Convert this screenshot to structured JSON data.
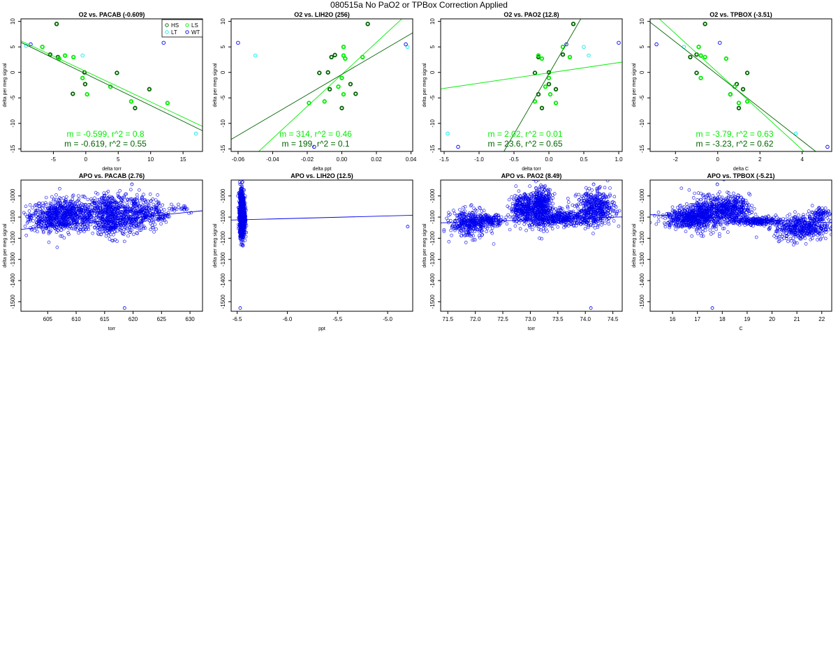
{
  "page_title": "080515a   No PaO2 or TPBox Correction Applied",
  "colors": {
    "HS": "#006400",
    "LS": "#00ee00",
    "LT": "#00eeee",
    "WT": "#0000ee",
    "axes": "#000000"
  },
  "legend": {
    "entries": [
      {
        "label": "HS",
        "key": "HS"
      },
      {
        "label": "LS",
        "key": "LS"
      },
      {
        "label": "LT",
        "key": "LT"
      },
      {
        "label": "WT",
        "key": "WT"
      }
    ]
  },
  "chart_data": [
    {
      "type": "scatter",
      "title": "O2 vs. PACAB (-0.609)",
      "xlabel": "delta torr",
      "ylabel": "delta per meg signal",
      "xlim": [
        -10,
        18
      ],
      "ylim": [
        -15.5,
        10.5
      ],
      "xticks": [
        -5,
        0,
        5,
        10,
        15
      ],
      "yticks": [
        -15,
        -10,
        -5,
        0,
        5,
        10
      ],
      "show_legend": true,
      "points": [
        {
          "x": -4.5,
          "y": 9.5,
          "g": "HS"
        },
        {
          "x": -5.5,
          "y": 3.5,
          "g": "HS"
        },
        {
          "x": -4.3,
          "y": 3.0,
          "g": "HS"
        },
        {
          "x": -2.0,
          "y": -4.2,
          "g": "HS"
        },
        {
          "x": -0.2,
          "y": 0.0,
          "g": "HS"
        },
        {
          "x": -0.1,
          "y": -2.3,
          "g": "HS"
        },
        {
          "x": 9.8,
          "y": -3.3,
          "g": "HS"
        },
        {
          "x": 7.6,
          "y": -7.0,
          "g": "HS"
        },
        {
          "x": 4.8,
          "y": -0.1,
          "g": "HS"
        },
        {
          "x": -6.7,
          "y": 5.0,
          "g": "LS"
        },
        {
          "x": -4.1,
          "y": 2.7,
          "g": "LS"
        },
        {
          "x": -3.2,
          "y": 3.3,
          "g": "LS"
        },
        {
          "x": -1.9,
          "y": 3.0,
          "g": "LS"
        },
        {
          "x": -0.5,
          "y": -1.1,
          "g": "LS"
        },
        {
          "x": 0.2,
          "y": -4.3,
          "g": "LS"
        },
        {
          "x": 3.8,
          "y": -2.8,
          "g": "LS"
        },
        {
          "x": 7.0,
          "y": -5.7,
          "g": "LS"
        },
        {
          "x": 12.6,
          "y": -6.0,
          "g": "LS"
        },
        {
          "x": -9.2,
          "y": 5.2,
          "g": "LT"
        },
        {
          "x": -0.5,
          "y": 3.3,
          "g": "LT"
        },
        {
          "x": 17.0,
          "y": -12.0,
          "g": "LT"
        },
        {
          "x": -8.5,
          "y": 5.5,
          "g": "WT"
        },
        {
          "x": 12.0,
          "y": 5.8,
          "g": "WT"
        }
      ],
      "fits": [
        {
          "g": "LS",
          "slope": -0.599,
          "intercept": 0.2,
          "text": "m = -0.599, r^2 = 0.8"
        },
        {
          "g": "HS",
          "slope": -0.619,
          "intercept": -0.3,
          "text": "m = -0.619, r^2 = 0.55"
        }
      ]
    },
    {
      "type": "scatter",
      "title": "O2 vs. LIH2O (256)",
      "xlabel": "delta ppt",
      "ylabel": "delta per meg signal",
      "xlim": [
        -0.064,
        0.041
      ],
      "ylim": [
        -15.5,
        10.5
      ],
      "xticks": [
        -0.06,
        -0.04,
        -0.02,
        0.0,
        0.02,
        0.04
      ],
      "xtick_labels": [
        "-0.06",
        "-0.04",
        "-0.02",
        "0.00",
        "0.02",
        "0.04"
      ],
      "yticks": [
        -15,
        -10,
        -5,
        0,
        5,
        10
      ],
      "show_legend": false,
      "points": [
        {
          "x": 0.015,
          "y": 9.5,
          "g": "HS"
        },
        {
          "x": -0.006,
          "y": 3.0,
          "g": "HS"
        },
        {
          "x": -0.004,
          "y": 3.4,
          "g": "HS"
        },
        {
          "x": -0.008,
          "y": 0.0,
          "g": "HS"
        },
        {
          "x": -0.007,
          "y": -3.3,
          "g": "HS"
        },
        {
          "x": 0.005,
          "y": -2.3,
          "g": "HS"
        },
        {
          "x": 0.008,
          "y": -4.2,
          "g": "HS"
        },
        {
          "x": 0.0,
          "y": -7.0,
          "g": "HS"
        },
        {
          "x": -0.013,
          "y": -0.1,
          "g": "HS"
        },
        {
          "x": 0.001,
          "y": 5.0,
          "g": "LS"
        },
        {
          "x": 0.001,
          "y": 3.3,
          "g": "LS"
        },
        {
          "x": 0.002,
          "y": 2.7,
          "g": "LS"
        },
        {
          "x": 0.012,
          "y": 3.0,
          "g": "LS"
        },
        {
          "x": 0.0,
          "y": -1.1,
          "g": "LS"
        },
        {
          "x": 0.001,
          "y": -4.3,
          "g": "LS"
        },
        {
          "x": -0.002,
          "y": -2.8,
          "g": "LS"
        },
        {
          "x": -0.01,
          "y": -5.7,
          "g": "LS"
        },
        {
          "x": -0.019,
          "y": -6.0,
          "g": "LS"
        },
        {
          "x": -0.05,
          "y": 3.3,
          "g": "LT"
        },
        {
          "x": 0.038,
          "y": 5.0,
          "g": "LT"
        },
        {
          "x": -0.06,
          "y": 5.8,
          "g": "WT"
        },
        {
          "x": 0.037,
          "y": 5.5,
          "g": "WT"
        },
        {
          "x": -0.016,
          "y": -14.6,
          "g": "WT"
        }
      ],
      "fits": [
        {
          "g": "LS",
          "slope": 314,
          "intercept": -0.4,
          "text": "m = 314, r^2 = 0.46"
        },
        {
          "g": "HS",
          "slope": 199,
          "intercept": -0.4,
          "text": "m = 199, r^2 = 0.1"
        }
      ]
    },
    {
      "type": "scatter",
      "title": "O2 vs. PAO2 (12.8)",
      "xlabel": "delta torr",
      "ylabel": "delta per meg signal",
      "xlim": [
        -1.55,
        1.05
      ],
      "ylim": [
        -15.5,
        10.5
      ],
      "xticks": [
        -1.5,
        -1.0,
        -0.5,
        0.0,
        0.5,
        1.0
      ],
      "xtick_labels": [
        "-1.5",
        "-1.0",
        "-0.5",
        "0.0",
        "0.5",
        "1.0"
      ],
      "yticks": [
        -15,
        -10,
        -5,
        0,
        5,
        10
      ],
      "show_legend": false,
      "points": [
        {
          "x": 0.35,
          "y": 9.5,
          "g": "HS"
        },
        {
          "x": 0.2,
          "y": 3.5,
          "g": "HS"
        },
        {
          "x": -0.15,
          "y": 3.0,
          "g": "HS"
        },
        {
          "x": 0.0,
          "y": 0.0,
          "g": "HS"
        },
        {
          "x": 0.0,
          "y": -2.3,
          "g": "HS"
        },
        {
          "x": 0.1,
          "y": -3.3,
          "g": "HS"
        },
        {
          "x": -0.15,
          "y": -4.3,
          "g": "HS"
        },
        {
          "x": -0.1,
          "y": -7.0,
          "g": "HS"
        },
        {
          "x": -0.2,
          "y": -0.1,
          "g": "HS"
        },
        {
          "x": 0.2,
          "y": 5.0,
          "g": "LS"
        },
        {
          "x": -0.15,
          "y": 3.3,
          "g": "LS"
        },
        {
          "x": -0.1,
          "y": 2.7,
          "g": "LS"
        },
        {
          "x": 0.3,
          "y": 3.0,
          "g": "LS"
        },
        {
          "x": 0.0,
          "y": -1.1,
          "g": "LS"
        },
        {
          "x": 0.02,
          "y": -4.3,
          "g": "LS"
        },
        {
          "x": -0.05,
          "y": -2.8,
          "g": "LS"
        },
        {
          "x": 0.1,
          "y": -6.0,
          "g": "LS"
        },
        {
          "x": -0.2,
          "y": -5.7,
          "g": "LS"
        },
        {
          "x": 0.5,
          "y": 5.0,
          "g": "LT"
        },
        {
          "x": 0.57,
          "y": 3.3,
          "g": "LT"
        },
        {
          "x": -1.45,
          "y": -12.0,
          "g": "LT"
        },
        {
          "x": 0.25,
          "y": 5.5,
          "g": "WT"
        },
        {
          "x": 1.0,
          "y": 5.8,
          "g": "WT"
        },
        {
          "x": -1.3,
          "y": -14.6,
          "g": "WT"
        }
      ],
      "fits": [
        {
          "g": "LS",
          "slope": 2.02,
          "intercept": -0.1,
          "text": "m = 2.02, r^2 = 0.01"
        },
        {
          "g": "HS",
          "slope": 23.6,
          "intercept": -0.3,
          "text": "m = 23.6, r^2 = 0.65"
        }
      ]
    },
    {
      "type": "scatter",
      "title": "O2 vs. TPBOX (-3.51)",
      "xlabel": "delta C",
      "ylabel": "delta per meg signal",
      "xlim": [
        -3.2,
        5.4
      ],
      "ylim": [
        -15.5,
        10.5
      ],
      "xticks": [
        -2,
        0,
        2,
        4
      ],
      "yticks": [
        -15,
        -10,
        -5,
        0,
        5,
        10
      ],
      "show_legend": false,
      "points": [
        {
          "x": -0.6,
          "y": 9.5,
          "g": "HS"
        },
        {
          "x": -1.3,
          "y": 3.0,
          "g": "HS"
        },
        {
          "x": -1.0,
          "y": 3.5,
          "g": "HS"
        },
        {
          "x": -1.0,
          "y": -0.1,
          "g": "HS"
        },
        {
          "x": 0.9,
          "y": -2.3,
          "g": "HS"
        },
        {
          "x": 1.2,
          "y": -3.3,
          "g": "HS"
        },
        {
          "x": 0.6,
          "y": -4.3,
          "g": "HS"
        },
        {
          "x": 1.0,
          "y": -7.0,
          "g": "HS"
        },
        {
          "x": 1.4,
          "y": -0.1,
          "g": "HS"
        },
        {
          "x": -0.9,
          "y": 5.0,
          "g": "LS"
        },
        {
          "x": -0.8,
          "y": 3.3,
          "g": "LS"
        },
        {
          "x": -0.6,
          "y": 3.0,
          "g": "LS"
        },
        {
          "x": 0.4,
          "y": 2.7,
          "g": "LS"
        },
        {
          "x": -0.8,
          "y": -1.1,
          "g": "LS"
        },
        {
          "x": 0.6,
          "y": -4.3,
          "g": "LS"
        },
        {
          "x": 0.8,
          "y": -2.8,
          "g": "LS"
        },
        {
          "x": 1.0,
          "y": -6.0,
          "g": "LS"
        },
        {
          "x": 1.4,
          "y": -5.7,
          "g": "LS"
        },
        {
          "x": -1.6,
          "y": 5.0,
          "g": "LT"
        },
        {
          "x": 3.7,
          "y": -12.0,
          "g": "LT"
        },
        {
          "x": -2.9,
          "y": 5.5,
          "g": "WT"
        },
        {
          "x": 0.1,
          "y": 5.8,
          "g": "WT"
        },
        {
          "x": 5.2,
          "y": -14.6,
          "g": "WT"
        }
      ],
      "fits": [
        {
          "g": "LS",
          "slope": -3.79,
          "intercept": 0.0,
          "text": "m = -3.79, r^2 = 0.63"
        },
        {
          "g": "HS",
          "slope": -3.23,
          "intercept": -0.5,
          "text": "m = -3.23, r^2 = 0.62"
        }
      ]
    },
    {
      "type": "scatter",
      "title": "APO vs. PACAB (2.76)",
      "xlabel": "torr",
      "ylabel": "delta per meg signal",
      "xlim": [
        600.3,
        632.2
      ],
      "ylim": [
        -1545,
        -925
      ],
      "xticks": [
        605,
        610,
        615,
        620,
        625,
        630
      ],
      "yticks": [
        -1500,
        -1400,
        -1300,
        -1200,
        -1100,
        -1000
      ],
      "show_legend": false,
      "fits": [
        {
          "g": "APO",
          "slope": 2.76,
          "intercept": -2815,
          "text": ""
        }
      ],
      "clusters": [
        {
          "cx": 608.5,
          "cy": -1090,
          "sx": 3.2,
          "sy": 38,
          "n": 700
        },
        {
          "cx": 605.0,
          "cy": -1110,
          "sx": 1.6,
          "sy": 28,
          "n": 150
        },
        {
          "cx": 616.0,
          "cy": -1070,
          "sx": 1.6,
          "sy": 38,
          "n": 300
        },
        {
          "cx": 616.5,
          "cy": -1140,
          "sx": 1.8,
          "sy": 30,
          "n": 180
        },
        {
          "cx": 620.5,
          "cy": -1080,
          "sx": 1.9,
          "sy": 42,
          "n": 300
        },
        {
          "cx": 624.0,
          "cy": -1090,
          "sx": 1.2,
          "sy": 25,
          "n": 80
        },
        {
          "cx": 628.0,
          "cy": -1055,
          "sx": 1.6,
          "sy": 14,
          "n": 25
        }
      ],
      "extra_points": [
        {
          "x": 618.5,
          "y": -1530
        },
        {
          "x": 619.8,
          "y": -945
        }
      ]
    },
    {
      "type": "scatter",
      "title": "APO vs. LIH2O (12.5)",
      "xlabel": "ppt",
      "ylabel": "delta per meg signal",
      "xlim": [
        -6.56,
        -4.75
      ],
      "ylim": [
        -1545,
        -925
      ],
      "xticks": [
        -6.5,
        -6.0,
        -5.5,
        -5.0
      ],
      "xtick_labels": [
        "-6.5",
        "-6.0",
        "-5.5",
        "-5.0"
      ],
      "yticks": [
        -1500,
        -1400,
        -1300,
        -1200,
        -1100,
        -1000
      ],
      "show_legend": false,
      "fits": [
        {
          "g": "APO",
          "slope": 12.5,
          "intercept": -1032,
          "text": ""
        }
      ],
      "clusters": [
        {
          "cx": -6.45,
          "cy": -1095,
          "sx": 0.013,
          "sy": 45,
          "n": 1400
        },
        {
          "cx": -6.46,
          "cy": -1005,
          "sx": 0.01,
          "sy": 25,
          "n": 80
        }
      ],
      "extra_points": [
        {
          "x": -6.47,
          "y": -1530
        },
        {
          "x": -4.8,
          "y": -1145
        },
        {
          "x": -6.47,
          "y": -945
        }
      ]
    },
    {
      "type": "scatter",
      "title": "APO vs. PAO2 (8.49)",
      "xlabel": "torr",
      "ylabel": "delta per meg signal",
      "xlim": [
        71.37,
        74.67
      ],
      "ylim": [
        -1545,
        -925
      ],
      "xticks": [
        71.5,
        72.0,
        72.5,
        73.0,
        73.5,
        74.0,
        74.5
      ],
      "xtick_labels": [
        "71.5",
        "72.0",
        "72.5",
        "73.0",
        "73.5",
        "74.0",
        "74.5"
      ],
      "yticks": [
        -1500,
        -1400,
        -1300,
        -1200,
        -1100,
        -1000
      ],
      "show_legend": false,
      "fits": [
        {
          "g": "APO",
          "slope": 8.49,
          "intercept": -1733,
          "text": ""
        }
      ],
      "clusters": [
        {
          "cx": 71.9,
          "cy": -1130,
          "sx": 0.17,
          "sy": 32,
          "n": 350
        },
        {
          "cx": 72.3,
          "cy": -1115,
          "sx": 0.12,
          "sy": 12,
          "n": 120
        },
        {
          "cx": 72.9,
          "cy": -1060,
          "sx": 0.13,
          "sy": 35,
          "n": 350
        },
        {
          "cx": 73.2,
          "cy": -1050,
          "sx": 0.1,
          "sy": 45,
          "n": 400
        },
        {
          "cx": 73.6,
          "cy": -1105,
          "sx": 0.25,
          "sy": 18,
          "n": 350
        },
        {
          "cx": 74.2,
          "cy": -1060,
          "sx": 0.17,
          "sy": 40,
          "n": 450
        }
      ],
      "extra_points": [
        {
          "x": 74.1,
          "y": -1530
        },
        {
          "x": 74.15,
          "y": -945
        }
      ]
    },
    {
      "type": "scatter",
      "title": "APO vs. TPBOX (-5.21)",
      "xlabel": "C",
      "ylabel": "delta per meg signal",
      "xlim": [
        15.1,
        22.4
      ],
      "ylim": [
        -1545,
        -925
      ],
      "xticks": [
        16,
        17,
        18,
        19,
        20,
        21,
        22
      ],
      "yticks": [
        -1500,
        -1400,
        -1300,
        -1200,
        -1100,
        -1000
      ],
      "show_legend": false,
      "fits": [
        {
          "g": "APO",
          "slope": -5.21,
          "intercept": -1010,
          "text": ""
        }
      ],
      "clusters": [
        {
          "cx": 16.5,
          "cy": -1105,
          "sx": 0.45,
          "sy": 22,
          "n": 350
        },
        {
          "cx": 17.3,
          "cy": -1085,
          "sx": 0.4,
          "sy": 38,
          "n": 450
        },
        {
          "cx": 18.3,
          "cy": -1060,
          "sx": 0.4,
          "sy": 30,
          "n": 400
        },
        {
          "cx": 19.4,
          "cy": -1120,
          "sx": 0.55,
          "sy": 9,
          "n": 250
        },
        {
          "cx": 21.2,
          "cy": -1150,
          "sx": 0.55,
          "sy": 30,
          "n": 450
        },
        {
          "cx": 21.9,
          "cy": -1085,
          "sx": 0.2,
          "sy": 18,
          "n": 80
        }
      ],
      "extra_points": [
        {
          "x": 17.6,
          "y": -1530
        },
        {
          "x": 17.8,
          "y": -945
        }
      ]
    }
  ]
}
